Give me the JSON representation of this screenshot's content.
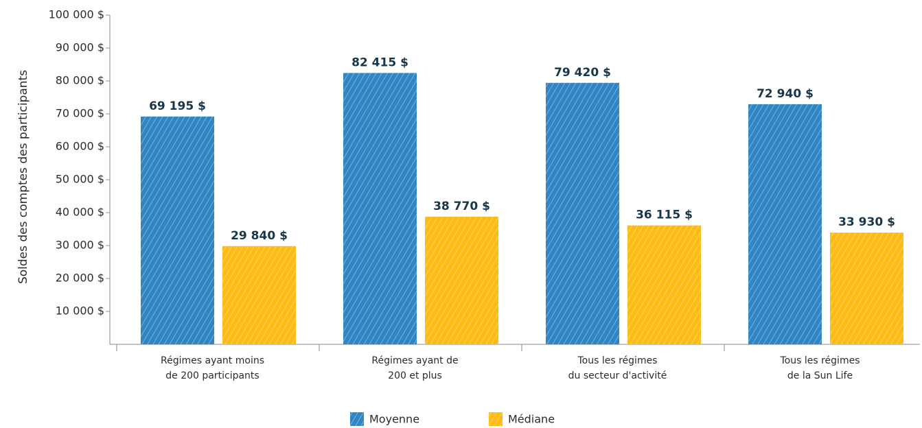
{
  "chart_data": {
    "type": "bar",
    "y_axis_label": "Soldes des comptes des participants",
    "categories": [
      [
        "Régimes ayant moins",
        "de 200 participants"
      ],
      [
        "Régimes ayant de",
        "200 et plus"
      ],
      [
        "Tous les régimes",
        "du secteur d'activité"
      ],
      [
        "Tous les régimes",
        "de la Sun Life"
      ]
    ],
    "series": [
      {
        "name": "Moyenne",
        "color": "#2f86c3",
        "values": [
          69195,
          82415,
          79420,
          72940
        ],
        "value_labels": [
          "69 195 $",
          "82 415 $",
          "79 420 $",
          "72 940 $"
        ]
      },
      {
        "name": "Médiane",
        "color": "#fdbb13",
        "values": [
          29840,
          38770,
          36115,
          33930
        ],
        "value_labels": [
          "29 840 $",
          "38 770 $",
          "36 115 $",
          "33 930 $"
        ]
      }
    ],
    "ylim": [
      0,
      100000
    ],
    "yticks": [
      {
        "value": 10000,
        "label": "10 000 $"
      },
      {
        "value": 20000,
        "label": "20 000 $"
      },
      {
        "value": 30000,
        "label": "30 000 $"
      },
      {
        "value": 40000,
        "label": "40 000 $"
      },
      {
        "value": 50000,
        "label": "50 000 $"
      },
      {
        "value": 60000,
        "label": "60 000 $"
      },
      {
        "value": 70000,
        "label": "70 000 $"
      },
      {
        "value": 80000,
        "label": "80 000 $"
      },
      {
        "value": 90000,
        "label": "90 000 $"
      },
      {
        "value": 100000,
        "label": "100 000 $"
      }
    ]
  }
}
